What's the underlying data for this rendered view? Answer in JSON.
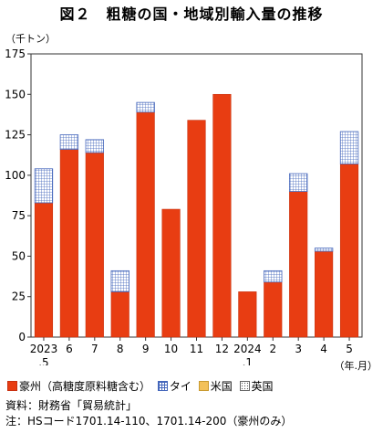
{
  "title": "図２　粗糖の国・地域別輸入量の推移",
  "unit_label": "（千トン）",
  "x_unit_label": "（年.月）",
  "legend": [
    {
      "label": "豪州（高糖度原料糖含む）",
      "color": "#e83d12"
    },
    {
      "label": "タイ",
      "color": "#4466bb"
    },
    {
      "label": "米国",
      "color": "#f3c15a"
    },
    {
      "label": "英国",
      "color": "#555555"
    }
  ],
  "notes": {
    "source": "資料：財務省「貿易統計」",
    "note": "注：HSコード1701.14-110、1701.14-200（豪州のみ）"
  },
  "chart_data": {
    "type": "bar",
    "stacked": true,
    "categories": [
      "2023 .5",
      "6",
      "7",
      "8",
      "9",
      "10",
      "11",
      "12",
      "2024 .1",
      "2",
      "3",
      "4",
      "5"
    ],
    "category_labels": [
      [
        "2023",
        ".5"
      ],
      [
        "6"
      ],
      [
        "7"
      ],
      [
        "8"
      ],
      [
        "9"
      ],
      [
        "10"
      ],
      [
        "11"
      ],
      [
        "12"
      ],
      [
        "2024",
        ".1"
      ],
      [
        "2"
      ],
      [
        "3"
      ],
      [
        "4"
      ],
      [
        "5"
      ]
    ],
    "series": [
      {
        "name": "豪州（高糖度原料糖含む）",
        "color": "#e83d12",
        "values": [
          83,
          116,
          114,
          28,
          139,
          79,
          134,
          150,
          28,
          34,
          90,
          53,
          107
        ]
      },
      {
        "name": "タイ",
        "color": "#4466bb",
        "values": [
          21,
          9,
          8,
          13,
          6,
          0,
          0,
          0,
          0,
          7,
          11,
          2,
          20
        ]
      },
      {
        "name": "米国",
        "color": "#f3c15a",
        "values": [
          0,
          0,
          0,
          0,
          0,
          0,
          0,
          0,
          0,
          0,
          0,
          0,
          0
        ]
      },
      {
        "name": "英国",
        "color": "#555555",
        "values": [
          0,
          0,
          0,
          0,
          0,
          0,
          0,
          0,
          0,
          0,
          0,
          0,
          0
        ]
      }
    ],
    "ylim": [
      0,
      175
    ],
    "yticks": [
      0,
      25,
      50,
      75,
      100,
      125,
      150,
      175
    ],
    "grid": false,
    "legend_position": "bottom"
  }
}
